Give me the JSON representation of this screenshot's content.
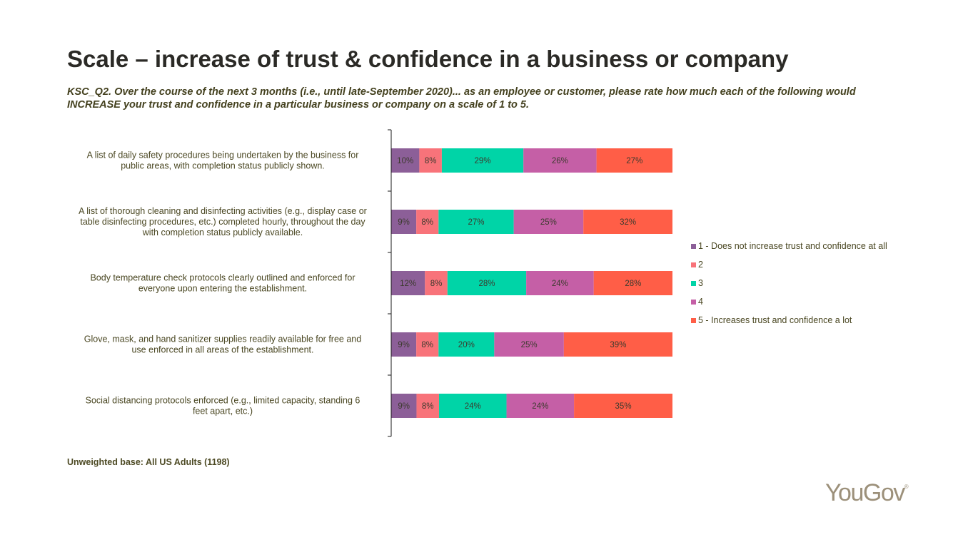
{
  "title": "Scale – increase of trust & confidence in a business or company",
  "subtitle": "KSC_Q2. Over the course of the next 3 months (i.e., until late-September 2020)... as an employee or customer, please rate how much each of the following would INCREASE your trust and confidence in a particular business or company on a scale of 1 to 5.",
  "footnote": "Unweighted base: All US Adults (1198)",
  "logo": "YouGov",
  "colors": {
    "s1": "#8c5f98",
    "s2": "#f8737a",
    "s3": "#00d4a7",
    "s4": "#c55fa6",
    "s5": "#ff5e47"
  },
  "chart_data": {
    "type": "bar",
    "orientation": "horizontal",
    "stacked": true,
    "percent": true,
    "categories": [
      [
        "A list of daily safety procedures being undertaken by the business for",
        "public areas, with completion status publicly shown."
      ],
      [
        "A list of thorough cleaning and disinfecting activities (e.g., display case or",
        "table disinfecting procedures, etc.) completed hourly, throughout the day",
        "with completion status publicly available."
      ],
      [
        "Body temperature check protocols clearly outlined and enforced for",
        "everyone upon entering the establishment."
      ],
      [
        "Glove, mask, and hand sanitizer supplies readily available for free and",
        "use enforced in all areas of the establishment."
      ],
      [
        "Social distancing protocols enforced (e.g., limited capacity, standing 6",
        "feet apart, etc.)"
      ]
    ],
    "series": [
      {
        "name": "1 - Does not increase trust and confidence at all",
        "values": [
          10,
          9,
          12,
          9,
          9
        ]
      },
      {
        "name": "2",
        "values": [
          8,
          8,
          8,
          8,
          8
        ]
      },
      {
        "name": "3",
        "values": [
          29,
          27,
          28,
          20,
          24
        ]
      },
      {
        "name": "4",
        "values": [
          26,
          25,
          24,
          25,
          24
        ]
      },
      {
        "name": "5 - Increases trust and confidence a lot",
        "values": [
          27,
          32,
          28,
          39,
          35
        ]
      }
    ],
    "data_labels": [
      [
        "10%",
        "9%",
        "12%",
        "9%",
        "9%"
      ],
      [
        "8%",
        "8%",
        "8%",
        "8%",
        "8%"
      ],
      [
        "29%",
        "27%",
        "28%",
        "20%",
        "24%"
      ],
      [
        "26%",
        "25%",
        "24%",
        "25%",
        "24%"
      ],
      [
        "27%",
        "32%",
        "28%",
        "39%",
        "35%"
      ]
    ],
    "legend": "right",
    "grid": false
  }
}
